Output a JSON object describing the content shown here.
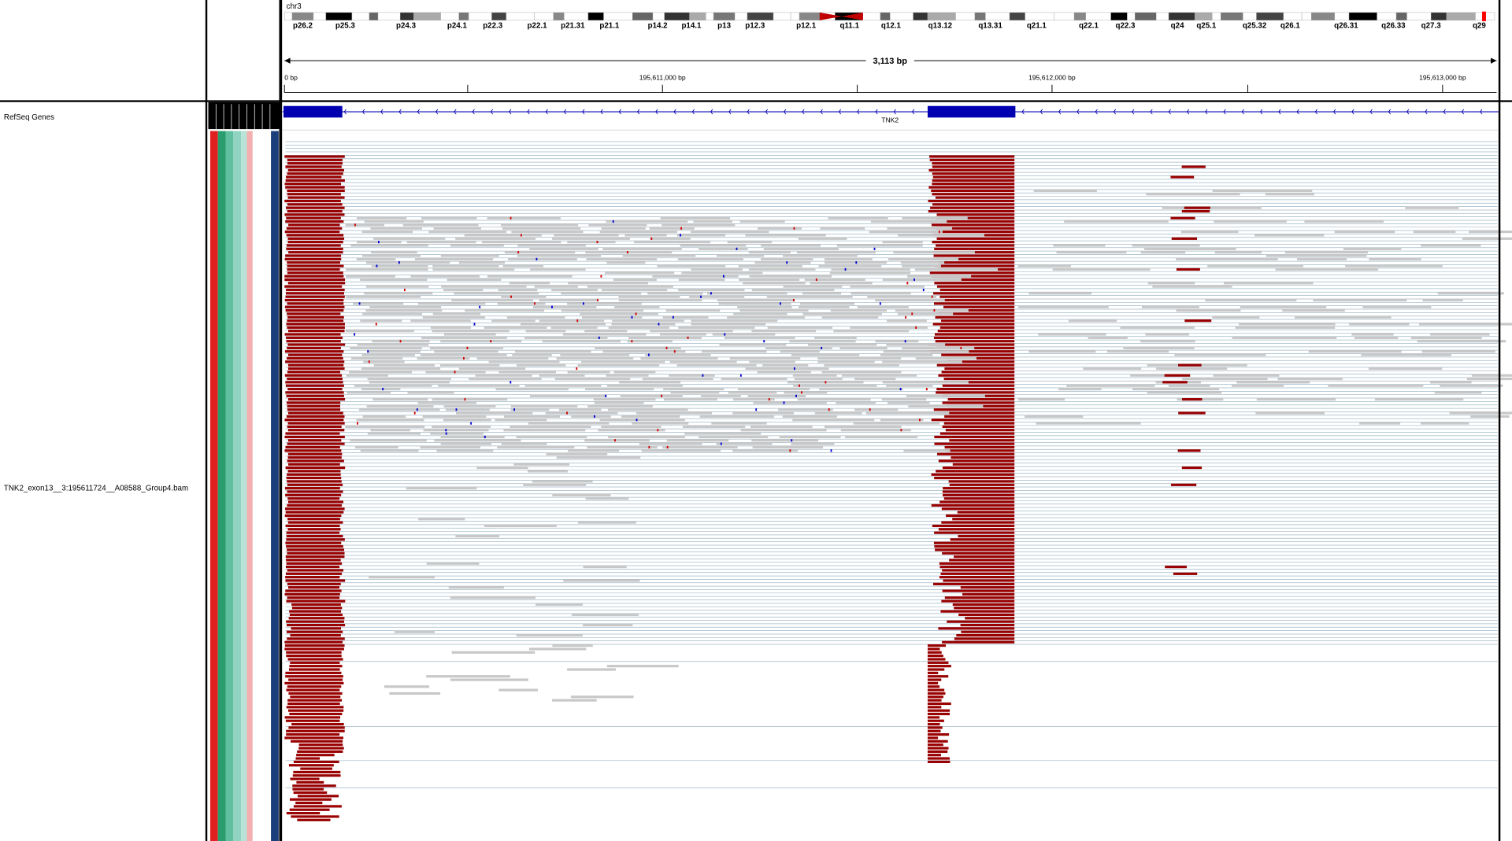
{
  "ruler": {
    "chromosome": "chr3",
    "span": "3,113 bp",
    "ticks": [
      "0 bp",
      "195,611,000 bp",
      "195,612,000 bp",
      "195,613,000 bp"
    ]
  },
  "cytobands": [
    "p26.2",
    "p25.3",
    "p24.3",
    "p24.1",
    "p22.3",
    "p22.1",
    "p21.31",
    "p21.1",
    "p14.2",
    "p14.1",
    "p13",
    "p12.3",
    "p12.1",
    "q11.1",
    "q12.1",
    "q13.12",
    "q13.31",
    "q21.1",
    "q22.1",
    "q22.3",
    "q24",
    "q25.1",
    "q25.32",
    "q26.1",
    "q26.31",
    "q26.33",
    "q27.3",
    "q29"
  ],
  "tracks": [
    {
      "name": "RefSeq Genes"
    },
    {
      "name": "TNK2_exon13__3:195611724__A08588_Group4.bam"
    }
  ],
  "gene": {
    "name": "TNK2"
  }
}
